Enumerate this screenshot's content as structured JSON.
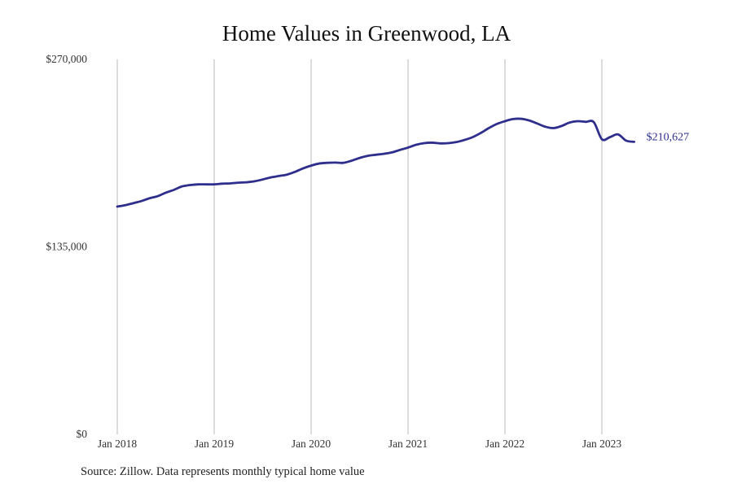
{
  "chart_data": {
    "type": "line",
    "title": "Home Values in Greenwood, LA",
    "xlabel": "",
    "ylabel": "",
    "source": "Source: Zillow. Data represents monthly typical home value",
    "ylim": [
      0,
      270000
    ],
    "yticks": [
      0,
      135000,
      270000
    ],
    "ytick_labels": [
      "$0",
      "$135,000",
      "$270,000"
    ],
    "xticks": [
      "2018-01",
      "2019-01",
      "2020-01",
      "2021-01",
      "2022-01",
      "2023-01"
    ],
    "xtick_labels": [
      "Jan 2018",
      "Jan 2019",
      "Jan 2020",
      "Jan 2021",
      "Jan 2022",
      "Jan 2023"
    ],
    "grid": "vertical",
    "color": "#2e2e8c",
    "end_label": "$210,627",
    "series": [
      {
        "x": [
          "2018-01",
          "2018-02",
          "2018-03",
          "2018-04",
          "2018-05",
          "2018-06",
          "2018-07",
          "2018-08",
          "2018-09",
          "2018-10",
          "2018-11",
          "2018-12",
          "2019-01",
          "2019-02",
          "2019-03",
          "2019-04",
          "2019-05",
          "2019-06",
          "2019-07",
          "2019-08",
          "2019-09",
          "2019-10",
          "2019-11",
          "2019-12",
          "2020-01",
          "2020-02",
          "2020-03",
          "2020-04",
          "2020-05",
          "2020-06",
          "2020-07",
          "2020-08",
          "2020-09",
          "2020-10",
          "2020-11",
          "2020-12",
          "2021-01",
          "2021-02",
          "2021-03",
          "2021-04",
          "2021-05",
          "2021-06",
          "2021-07",
          "2021-08",
          "2021-09",
          "2021-10",
          "2021-11",
          "2021-12",
          "2022-01",
          "2022-02",
          "2022-03",
          "2022-04",
          "2022-05",
          "2022-06",
          "2022-07",
          "2022-08",
          "2022-09",
          "2022-10",
          "2022-11",
          "2022-12",
          "2023-01",
          "2023-02",
          "2023-03",
          "2023-04",
          "2023-05"
        ],
        "values": [
          164000,
          165000,
          166500,
          168000,
          170000,
          171500,
          174000,
          176000,
          178500,
          179500,
          180000,
          180000,
          180000,
          180500,
          180700,
          181200,
          181500,
          182200,
          183500,
          185000,
          186000,
          187000,
          189000,
          191500,
          193500,
          195000,
          195500,
          195700,
          195500,
          197000,
          199000,
          200500,
          201300,
          202000,
          203000,
          204800,
          206500,
          208500,
          209700,
          210000,
          209500,
          209700,
          210500,
          212000,
          214000,
          217000,
          220500,
          223500,
          225500,
          227000,
          227200,
          226000,
          223800,
          221500,
          220500,
          222000,
          224500,
          225500,
          225000,
          224800,
          212500,
          214000,
          216000,
          211500,
          210627
        ]
      }
    ]
  }
}
